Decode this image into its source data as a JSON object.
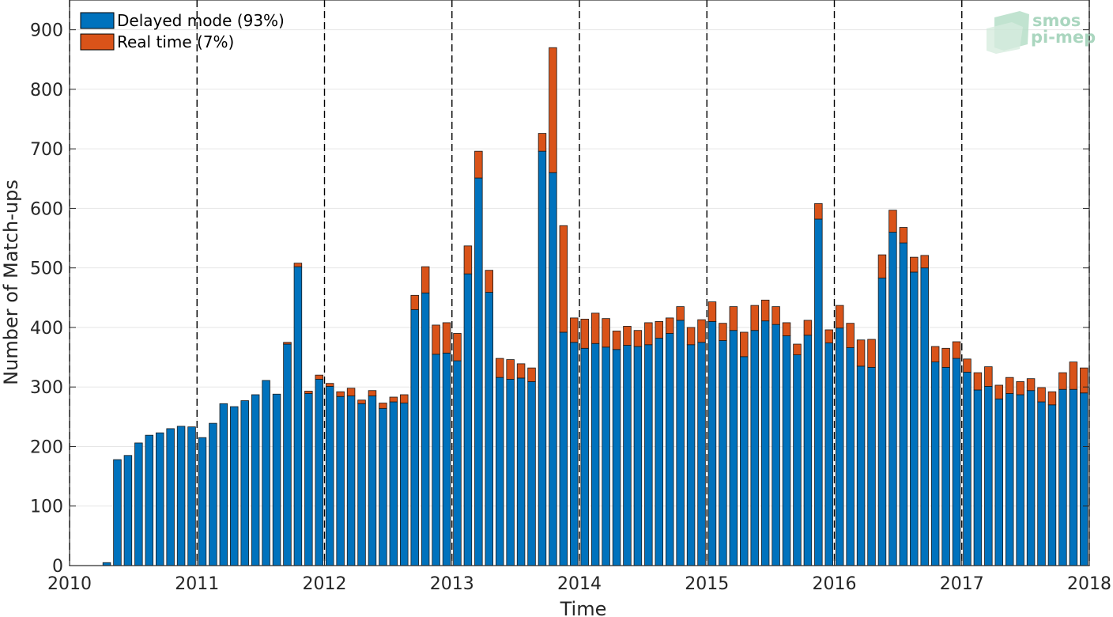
{
  "chart_data": {
    "type": "bar",
    "stacked": true,
    "xlabel": "Time",
    "ylabel": "Number of Match-ups",
    "xlim": [
      "2010-01",
      "2018-01"
    ],
    "ylim": [
      0,
      950
    ],
    "x_ticks": [
      "2010",
      "2011",
      "2012",
      "2013",
      "2014",
      "2015",
      "2016",
      "2017",
      "2018"
    ],
    "y_ticks": [
      0,
      100,
      200,
      300,
      400,
      500,
      600,
      700,
      800,
      900
    ],
    "grid": true,
    "year_dividers": "dashed vertical lines at each year start",
    "legend_position": "top-left",
    "x": [
      "2010-04",
      "2010-05",
      "2010-06",
      "2010-07",
      "2010-08",
      "2010-09",
      "2010-10",
      "2010-11",
      "2010-12",
      "2011-01",
      "2011-02",
      "2011-03",
      "2011-04",
      "2011-05",
      "2011-06",
      "2011-07",
      "2011-08",
      "2011-09",
      "2011-10",
      "2011-11",
      "2011-12",
      "2012-01",
      "2012-02",
      "2012-03",
      "2012-04",
      "2012-05",
      "2012-06",
      "2012-07",
      "2012-08",
      "2012-09",
      "2012-10",
      "2012-11",
      "2012-12",
      "2013-01",
      "2013-02",
      "2013-03",
      "2013-04",
      "2013-05",
      "2013-06",
      "2013-07",
      "2013-08",
      "2013-09",
      "2013-10",
      "2013-11",
      "2013-12",
      "2014-01",
      "2014-02",
      "2014-03",
      "2014-04",
      "2014-05",
      "2014-06",
      "2014-07",
      "2014-08",
      "2014-09",
      "2014-10",
      "2014-11",
      "2014-12",
      "2015-01",
      "2015-02",
      "2015-03",
      "2015-04",
      "2015-05",
      "2015-06",
      "2015-07",
      "2015-08",
      "2015-09",
      "2015-10",
      "2015-11",
      "2015-12",
      "2016-01",
      "2016-02",
      "2016-03",
      "2016-04",
      "2016-05",
      "2016-06",
      "2016-07",
      "2016-08",
      "2016-09",
      "2016-10",
      "2016-11",
      "2016-12",
      "2017-01",
      "2017-02",
      "2017-03",
      "2017-04",
      "2017-05",
      "2017-06",
      "2017-07",
      "2017-08",
      "2017-09",
      "2017-10",
      "2017-11",
      "2017-12"
    ],
    "series": [
      {
        "name": "Delayed mode (93%)",
        "color": "#0072BD",
        "values": [
          5,
          178,
          185,
          206,
          219,
          223,
          230,
          234,
          233,
          215,
          239,
          272,
          267,
          277,
          287,
          311,
          288,
          372,
          502,
          289,
          313,
          301,
          284,
          285,
          272,
          285,
          264,
          275,
          273,
          430,
          458,
          355,
          357,
          344,
          490,
          651,
          459,
          316,
          313,
          315,
          309,
          696,
          660,
          392,
          375,
          365,
          373,
          367,
          363,
          370,
          368,
          371,
          382,
          390,
          412,
          371,
          375,
          410,
          378,
          395,
          351,
          395,
          411,
          405,
          386,
          354,
          387,
          582,
          374,
          399,
          366,
          335,
          333,
          483,
          560,
          542,
          493,
          500,
          342,
          333,
          348,
          325,
          295,
          301,
          280,
          289,
          287,
          294,
          275,
          270,
          296,
          296,
          290
        ]
      },
      {
        "name": "Real time (7%)",
        "color": "#D95319",
        "values": [
          0,
          0,
          0,
          0,
          0,
          0,
          0,
          0,
          0,
          0,
          0,
          0,
          0,
          0,
          0,
          0,
          0,
          3,
          6,
          4,
          7,
          5,
          8,
          13,
          6,
          9,
          9,
          8,
          14,
          24,
          44,
          49,
          51,
          46,
          47,
          45,
          37,
          32,
          33,
          24,
          23,
          30,
          210,
          179,
          41,
          49,
          51,
          48,
          31,
          32,
          27,
          37,
          28,
          26,
          23,
          29,
          38,
          33,
          29,
          40,
          41,
          42,
          35,
          30,
          22,
          18,
          25,
          26,
          22,
          38,
          41,
          44,
          47,
          39,
          37,
          26,
          25,
          21,
          26,
          32,
          28,
          22,
          29,
          33,
          23,
          27,
          22,
          20,
          24,
          22,
          28,
          46,
          42
        ]
      }
    ]
  },
  "legend": {
    "delayed_label": "Delayed mode (93%)",
    "realtime_label": "Real time (7%)"
  },
  "logo": {
    "line1": "smos",
    "line2": "pi-mep"
  }
}
